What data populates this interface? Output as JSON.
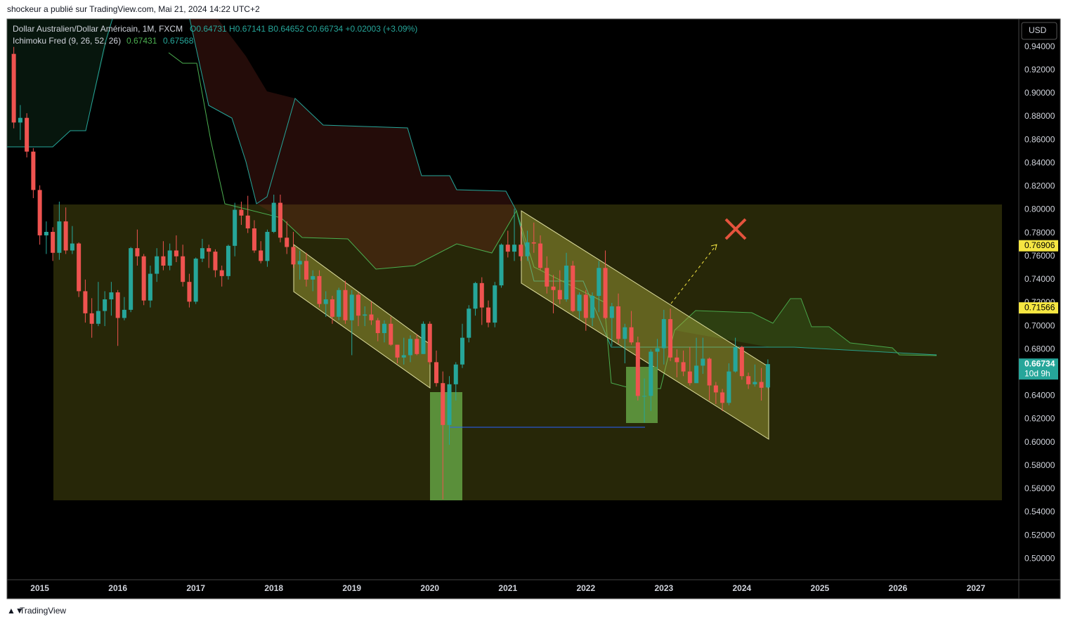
{
  "header": "shockeur a publié sur TradingView.com, Mai 21, 2024 14:22 UTC+2",
  "footer": "TradingView",
  "chart_data": {
    "type": "candlestick",
    "symbol": "Dollar Australien/Dollar Américain, 1M, FXCM",
    "ohlc_legend": "O0.64731 H0.67141 B0.64652 C0.66734 +0.02003 (+3.09%)",
    "indicator": {
      "name": "Ichimoku Fred (9, 26, 52, 26)",
      "values": [
        0.67431,
        0.67568
      ]
    },
    "currency": "USD",
    "up_color": "#26a69a",
    "down_color": "#ef5350",
    "ylim": [
      0.482,
      0.964
    ],
    "yticks": [
      {
        "value": 0.94,
        "label": "0.94000"
      },
      {
        "value": 0.92,
        "label": "0.92000"
      },
      {
        "value": 0.9,
        "label": "0.90000"
      },
      {
        "value": 0.88,
        "label": "0.88000"
      },
      {
        "value": 0.86,
        "label": "0.86000"
      },
      {
        "value": 0.84,
        "label": "0.84000"
      },
      {
        "value": 0.82,
        "label": "0.82000"
      },
      {
        "value": 0.8,
        "label": "0.80000"
      },
      {
        "value": 0.78,
        "label": "0.78000"
      },
      {
        "value": 0.76,
        "label": "0.76000"
      },
      {
        "value": 0.74,
        "label": "0.74000"
      },
      {
        "value": 0.72,
        "label": "0.72000"
      },
      {
        "value": 0.7,
        "label": "0.70000"
      },
      {
        "value": 0.68,
        "label": "0.68000"
      },
      {
        "value": 0.66,
        "label": "0.66000"
      },
      {
        "value": 0.64,
        "label": "0.64000"
      },
      {
        "value": 0.62,
        "label": "0.62000"
      },
      {
        "value": 0.6,
        "label": "0.60000"
      },
      {
        "value": 0.58,
        "label": "0.58000"
      },
      {
        "value": 0.56,
        "label": "0.56000"
      },
      {
        "value": 0.54,
        "label": "0.54000"
      },
      {
        "value": 0.52,
        "label": "0.52000"
      },
      {
        "value": 0.5,
        "label": "0.50000"
      }
    ],
    "xlim": [
      2014.58,
      2027.55
    ],
    "xticks": [
      2015,
      2016,
      2017,
      2018,
      2019,
      2020,
      2021,
      2022,
      2023,
      2024,
      2025,
      2026,
      2027
    ],
    "price_tags": [
      0.76906,
      0.71566
    ],
    "tag_color": "#f5e642",
    "last_price": 0.66734,
    "countdown": "10d 9h",
    "grid": false,
    "x": [
      "2014-09",
      "2014-10",
      "2014-11",
      "2014-12",
      "2015-01",
      "2015-02",
      "2015-03",
      "2015-04",
      "2015-05",
      "2015-06",
      "2015-07",
      "2015-08",
      "2015-09",
      "2015-10",
      "2015-11",
      "2015-12",
      "2016-01",
      "2016-02",
      "2016-03",
      "2016-04",
      "2016-05",
      "2016-06",
      "2016-07",
      "2016-08",
      "2016-09",
      "2016-10",
      "2016-11",
      "2016-12",
      "2017-01",
      "2017-02",
      "2017-03",
      "2017-04",
      "2017-05",
      "2017-06",
      "2017-07",
      "2017-08",
      "2017-09",
      "2017-10",
      "2017-11",
      "2017-12",
      "2018-01",
      "2018-02",
      "2018-03",
      "2018-04",
      "2018-05",
      "2018-06",
      "2018-07",
      "2018-08",
      "2018-09",
      "2018-10",
      "2018-11",
      "2018-12",
      "2019-01",
      "2019-02",
      "2019-03",
      "2019-04",
      "2019-05",
      "2019-06",
      "2019-07",
      "2019-08",
      "2019-09",
      "2019-10",
      "2019-11",
      "2019-12",
      "2020-01",
      "2020-02",
      "2020-03",
      "2020-04",
      "2020-05",
      "2020-06",
      "2020-07",
      "2020-08",
      "2020-09",
      "2020-10",
      "2020-11",
      "2020-12",
      "2021-01",
      "2021-02",
      "2021-03",
      "2021-04",
      "2021-05",
      "2021-06",
      "2021-07",
      "2021-08",
      "2021-09",
      "2021-10",
      "2021-11",
      "2021-12",
      "2022-01",
      "2022-02",
      "2022-03",
      "2022-04",
      "2022-05",
      "2022-06",
      "2022-07",
      "2022-08",
      "2022-09",
      "2022-10",
      "2022-11",
      "2022-12",
      "2023-01",
      "2023-02",
      "2023-03",
      "2023-04",
      "2023-05",
      "2023-06",
      "2023-07",
      "2023-08",
      "2023-09",
      "2023-10",
      "2023-11",
      "2023-12",
      "2024-01",
      "2024-02",
      "2024-03",
      "2024-04",
      "2024-05"
    ],
    "ohlc": [
      [
        0.934,
        0.94,
        0.87,
        0.875
      ],
      [
        0.875,
        0.89,
        0.86,
        0.879
      ],
      [
        0.879,
        0.883,
        0.845,
        0.85
      ],
      [
        0.85,
        0.853,
        0.81,
        0.817
      ],
      [
        0.817,
        0.821,
        0.77,
        0.778
      ],
      [
        0.778,
        0.79,
        0.762,
        0.781
      ],
      [
        0.781,
        0.785,
        0.756,
        0.763
      ],
      [
        0.763,
        0.807,
        0.757,
        0.79
      ],
      [
        0.79,
        0.802,
        0.762,
        0.765
      ],
      [
        0.765,
        0.786,
        0.762,
        0.771
      ],
      [
        0.771,
        0.772,
        0.725,
        0.73
      ],
      [
        0.73,
        0.74,
        0.703,
        0.711
      ],
      [
        0.711,
        0.724,
        0.69,
        0.702
      ],
      [
        0.702,
        0.738,
        0.7,
        0.713
      ],
      [
        0.713,
        0.73,
        0.7,
        0.723
      ],
      [
        0.723,
        0.738,
        0.709,
        0.729
      ],
      [
        0.729,
        0.731,
        0.683,
        0.707
      ],
      [
        0.707,
        0.725,
        0.705,
        0.714
      ],
      [
        0.714,
        0.768,
        0.712,
        0.767
      ],
      [
        0.767,
        0.783,
        0.752,
        0.76
      ],
      [
        0.76,
        0.762,
        0.718,
        0.722
      ],
      [
        0.722,
        0.752,
        0.716,
        0.745
      ],
      [
        0.745,
        0.767,
        0.738,
        0.76
      ],
      [
        0.76,
        0.773,
        0.748,
        0.752
      ],
      [
        0.752,
        0.771,
        0.748,
        0.765
      ],
      [
        0.765,
        0.778,
        0.755,
        0.76
      ],
      [
        0.76,
        0.77,
        0.734,
        0.738
      ],
      [
        0.738,
        0.745,
        0.716,
        0.721
      ],
      [
        0.721,
        0.759,
        0.719,
        0.758
      ],
      [
        0.758,
        0.775,
        0.755,
        0.767
      ],
      [
        0.767,
        0.77,
        0.75,
        0.764
      ],
      [
        0.764,
        0.766,
        0.742,
        0.748
      ],
      [
        0.748,
        0.752,
        0.734,
        0.743
      ],
      [
        0.743,
        0.77,
        0.74,
        0.769
      ],
      [
        0.769,
        0.806,
        0.76,
        0.8
      ],
      [
        0.8,
        0.807,
        0.787,
        0.795
      ],
      [
        0.795,
        0.812,
        0.78,
        0.784
      ],
      [
        0.784,
        0.791,
        0.763,
        0.765
      ],
      [
        0.765,
        0.773,
        0.754,
        0.756
      ],
      [
        0.756,
        0.783,
        0.751,
        0.781
      ],
      [
        0.781,
        0.813,
        0.78,
        0.806
      ],
      [
        0.806,
        0.813,
        0.772,
        0.776
      ],
      [
        0.776,
        0.79,
        0.762,
        0.768
      ],
      [
        0.768,
        0.781,
        0.75,
        0.753
      ],
      [
        0.753,
        0.765,
        0.74,
        0.756
      ],
      [
        0.756,
        0.763,
        0.734,
        0.74
      ],
      [
        0.74,
        0.748,
        0.73,
        0.743
      ],
      [
        0.743,
        0.748,
        0.716,
        0.719
      ],
      [
        0.719,
        0.73,
        0.708,
        0.723
      ],
      [
        0.723,
        0.726,
        0.702,
        0.708
      ],
      [
        0.708,
        0.733,
        0.705,
        0.731
      ],
      [
        0.731,
        0.739,
        0.702,
        0.705
      ],
      [
        0.705,
        0.731,
        0.675,
        0.727
      ],
      [
        0.727,
        0.729,
        0.7,
        0.709
      ],
      [
        0.709,
        0.717,
        0.7,
        0.71
      ],
      [
        0.71,
        0.721,
        0.701,
        0.705
      ],
      [
        0.705,
        0.707,
        0.687,
        0.694
      ],
      [
        0.694,
        0.705,
        0.686,
        0.702
      ],
      [
        0.702,
        0.708,
        0.683,
        0.684
      ],
      [
        0.684,
        0.684,
        0.668,
        0.673
      ],
      [
        0.673,
        0.69,
        0.667,
        0.675
      ],
      [
        0.675,
        0.692,
        0.669,
        0.689
      ],
      [
        0.689,
        0.693,
        0.675,
        0.676
      ],
      [
        0.676,
        0.704,
        0.676,
        0.702
      ],
      [
        0.702,
        0.704,
        0.667,
        0.669
      ],
      [
        0.669,
        0.679,
        0.648,
        0.651
      ],
      [
        0.651,
        0.661,
        0.551,
        0.615
      ],
      [
        0.615,
        0.657,
        0.598,
        0.65
      ],
      [
        0.65,
        0.669,
        0.636,
        0.667
      ],
      [
        0.667,
        0.702,
        0.664,
        0.69
      ],
      [
        0.69,
        0.718,
        0.686,
        0.715
      ],
      [
        0.715,
        0.738,
        0.709,
        0.737
      ],
      [
        0.737,
        0.742,
        0.701,
        0.716
      ],
      [
        0.716,
        0.722,
        0.699,
        0.703
      ],
      [
        0.703,
        0.738,
        0.699,
        0.735
      ],
      [
        0.735,
        0.771,
        0.733,
        0.77
      ],
      [
        0.77,
        0.782,
        0.759,
        0.764
      ],
      [
        0.764,
        0.801,
        0.756,
        0.77
      ],
      [
        0.77,
        0.786,
        0.756,
        0.76
      ],
      [
        0.76,
        0.782,
        0.756,
        0.772
      ],
      [
        0.772,
        0.789,
        0.763,
        0.771
      ],
      [
        0.771,
        0.778,
        0.748,
        0.75
      ],
      [
        0.75,
        0.76,
        0.728,
        0.734
      ],
      [
        0.734,
        0.744,
        0.711,
        0.731
      ],
      [
        0.731,
        0.748,
        0.719,
        0.723
      ],
      [
        0.723,
        0.763,
        0.721,
        0.752
      ],
      [
        0.752,
        0.756,
        0.712,
        0.713
      ],
      [
        0.713,
        0.729,
        0.706,
        0.727
      ],
      [
        0.727,
        0.731,
        0.696,
        0.707
      ],
      [
        0.707,
        0.729,
        0.7,
        0.726
      ],
      [
        0.726,
        0.756,
        0.712,
        0.75
      ],
      [
        0.75,
        0.765,
        0.706,
        0.707
      ],
      [
        0.707,
        0.72,
        0.683,
        0.717
      ],
      [
        0.717,
        0.728,
        0.685,
        0.689
      ],
      [
        0.689,
        0.702,
        0.668,
        0.699
      ],
      [
        0.699,
        0.713,
        0.684,
        0.686
      ],
      [
        0.686,
        0.691,
        0.636,
        0.64
      ],
      [
        0.64,
        0.655,
        0.617,
        0.64
      ],
      [
        0.64,
        0.68,
        0.627,
        0.678
      ],
      [
        0.678,
        0.689,
        0.663,
        0.681
      ],
      [
        0.681,
        0.714,
        0.667,
        0.706
      ],
      [
        0.706,
        0.715,
        0.67,
        0.673
      ],
      [
        0.673,
        0.68,
        0.656,
        0.669
      ],
      [
        0.669,
        0.679,
        0.657,
        0.661
      ],
      [
        0.661,
        0.682,
        0.649,
        0.651
      ],
      [
        0.651,
        0.69,
        0.651,
        0.666
      ],
      [
        0.666,
        0.69,
        0.659,
        0.672
      ],
      [
        0.672,
        0.673,
        0.636,
        0.649
      ],
      [
        0.649,
        0.652,
        0.633,
        0.643
      ],
      [
        0.643,
        0.646,
        0.627,
        0.634
      ],
      [
        0.634,
        0.668,
        0.632,
        0.661
      ],
      [
        0.661,
        0.69,
        0.66,
        0.682
      ],
      [
        0.682,
        0.683,
        0.654,
        0.657
      ],
      [
        0.657,
        0.66,
        0.646,
        0.65
      ],
      [
        0.65,
        0.667,
        0.648,
        0.652
      ],
      [
        0.652,
        0.664,
        0.636,
        0.647
      ],
      [
        0.64731,
        0.67141,
        0.64652,
        0.66734
      ]
    ]
  }
}
